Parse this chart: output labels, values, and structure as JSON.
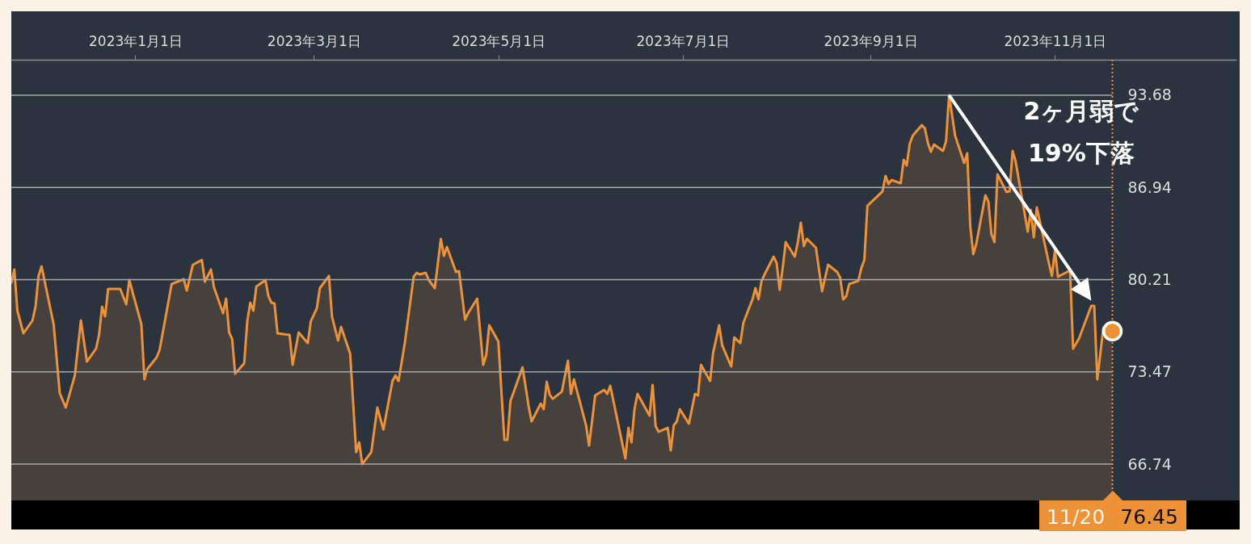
{
  "chart_data": {
    "type": "area",
    "x": [
      "2022-11-21",
      "2022-11-22",
      "2022-11-23",
      "2022-11-25",
      "2022-11-28",
      "2022-11-29",
      "2022-11-30",
      "2022-12-01",
      "2022-12-05",
      "2022-12-07",
      "2022-12-09",
      "2022-12-12",
      "2022-12-14",
      "2022-12-16",
      "2022-12-19",
      "2022-12-20",
      "2022-12-21",
      "2022-12-22",
      "2022-12-23",
      "2022-12-27",
      "2022-12-29",
      "2022-12-30",
      "2023-01-03",
      "2023-01-04",
      "2023-01-05",
      "2023-01-08",
      "2023-01-09",
      "2023-01-11",
      "2023-01-13",
      "2023-01-17",
      "2023-01-18",
      "2023-01-20",
      "2023-01-23",
      "2023-01-24",
      "2023-01-26",
      "2023-01-27",
      "2023-01-30",
      "2023-01-31",
      "2023-02-01",
      "2023-02-02",
      "2023-02-03",
      "2023-02-06",
      "2023-02-07",
      "2023-02-08",
      "2023-02-09",
      "2023-02-10",
      "2023-02-13",
      "2023-02-14",
      "2023-02-15",
      "2023-02-16",
      "2023-02-17",
      "2023-02-21",
      "2023-02-22",
      "2023-02-24",
      "2023-02-27",
      "2023-02-28",
      "2023-03-02",
      "2023-03-03",
      "2023-03-06",
      "2023-03-07",
      "2023-03-09",
      "2023-03-10",
      "2023-03-13",
      "2023-03-15",
      "2023-03-16",
      "2023-03-17",
      "2023-03-20",
      "2023-03-22",
      "2023-03-24",
      "2023-03-27",
      "2023-03-28",
      "2023-03-29",
      "2023-03-31",
      "2023-04-03",
      "2023-04-04",
      "2023-04-05",
      "2023-04-07",
      "2023-04-08",
      "2023-04-10",
      "2023-04-12",
      "2023-04-13",
      "2023-04-14",
      "2023-04-17",
      "2023-04-18",
      "2023-04-20",
      "2023-04-21",
      "2023-04-24",
      "2023-04-26",
      "2023-04-27",
      "2023-04-28",
      "2023-05-01",
      "2023-05-03",
      "2023-05-04",
      "2023-05-05",
      "2023-05-09",
      "2023-05-11",
      "2023-05-12",
      "2023-05-15",
      "2023-05-16",
      "2023-05-17",
      "2023-05-18",
      "2023-05-19",
      "2023-05-22",
      "2023-05-24",
      "2023-05-25",
      "2023-05-26",
      "2023-05-30",
      "2023-05-31",
      "2023-06-02",
      "2023-06-05",
      "2023-06-06",
      "2023-06-07",
      "2023-06-12",
      "2023-06-13",
      "2023-06-14",
      "2023-06-15",
      "2023-06-16",
      "2023-06-20",
      "2023-06-21",
      "2023-06-22",
      "2023-06-23",
      "2023-06-26",
      "2023-06-27",
      "2023-06-28",
      "2023-06-29",
      "2023-06-30",
      "2023-07-03",
      "2023-07-05",
      "2023-07-06",
      "2023-07-07",
      "2023-07-10",
      "2023-07-11",
      "2023-07-13",
      "2023-07-14",
      "2023-07-17",
      "2023-07-18",
      "2023-07-20",
      "2023-07-21",
      "2023-07-24",
      "2023-07-25",
      "2023-07-26",
      "2023-07-27",
      "2023-07-28",
      "2023-07-31",
      "2023-08-01",
      "2023-08-02",
      "2023-08-03",
      "2023-08-04",
      "2023-08-07",
      "2023-08-08",
      "2023-08-09",
      "2023-08-10",
      "2023-08-11",
      "2023-08-14",
      "2023-08-16",
      "2023-08-18",
      "2023-08-21",
      "2023-08-22",
      "2023-08-23",
      "2023-08-24",
      "2023-08-25",
      "2023-08-28",
      "2023-08-29",
      "2023-08-30",
      "2023-08-31",
      "2023-09-05",
      "2023-09-06",
      "2023-09-07",
      "2023-09-08",
      "2023-09-11",
      "2023-09-12",
      "2023-09-13",
      "2023-09-14",
      "2023-09-15",
      "2023-09-18",
      "2023-09-19",
      "2023-09-20",
      "2023-09-21",
      "2023-09-22",
      "2023-09-25",
      "2023-09-26",
      "2023-09-27",
      "2023-09-28",
      "2023-09-29",
      "2023-10-02",
      "2023-10-03",
      "2023-10-04",
      "2023-10-05",
      "2023-10-06",
      "2023-10-09",
      "2023-10-10",
      "2023-10-11",
      "2023-10-12",
      "2023-10-13",
      "2023-10-16",
      "2023-10-17",
      "2023-10-18",
      "2023-10-19",
      "2023-10-23",
      "2023-10-24",
      "2023-10-25",
      "2023-10-26",
      "2023-10-30",
      "2023-10-31",
      "2023-11-01",
      "2023-11-02",
      "2023-11-06",
      "2023-11-07",
      "2023-11-09",
      "2023-11-13",
      "2023-11-14",
      "2023-11-15",
      "2023-11-17",
      "2023-11-20"
    ],
    "series": [
      {
        "color": "#ee9238",
        "values": [
          80.0,
          80.95,
          77.94,
          76.29,
          77.23,
          78.24,
          80.48,
          81.18,
          76.94,
          71.93,
          70.87,
          73.22,
          77.23,
          74.23,
          75.17,
          76.17,
          78.24,
          77.53,
          79.53,
          79.53,
          78.41,
          80.18,
          76.94,
          72.93,
          73.7,
          74.52,
          75.05,
          77.47,
          79.89,
          80.24,
          79.41,
          81.3,
          81.65,
          80.06,
          80.95,
          79.65,
          77.76,
          78.82,
          76.35,
          75.88,
          73.34,
          74.11,
          77.17,
          78.53,
          77.94,
          79.71,
          80.18,
          79.0,
          78.53,
          78.47,
          76.29,
          76.17,
          73.99,
          76.35,
          75.58,
          77.17,
          78.12,
          79.59,
          80.48,
          77.53,
          75.76,
          76.76,
          74.82,
          67.62,
          68.33,
          66.74,
          67.62,
          70.87,
          69.27,
          72.81,
          73.22,
          72.81,
          75.46,
          80.42,
          80.71,
          80.59,
          80.71,
          80.18,
          79.59,
          83.19,
          81.95,
          82.6,
          80.77,
          80.83,
          77.29,
          77.76,
          78.82,
          73.99,
          74.7,
          76.88,
          75.7,
          68.51,
          68.51,
          71.34,
          73.81,
          70.98,
          69.86,
          71.16,
          70.75,
          72.75,
          71.81,
          71.51,
          72.04,
          74.29,
          71.87,
          72.93,
          69.57,
          68.1,
          71.75,
          72.16,
          71.87,
          72.46,
          67.15,
          69.39,
          68.33,
          70.75,
          71.87,
          70.28,
          72.52,
          69.51,
          69.1,
          69.39,
          67.74,
          69.57,
          69.86,
          70.75,
          69.69,
          71.87,
          71.75,
          73.99,
          72.81,
          74.87,
          76.88,
          75.41,
          73.87,
          75.99,
          75.58,
          77.06,
          78.77,
          79.59,
          78.77,
          80.12,
          80.59,
          81.89,
          81.42,
          79.47,
          81.06,
          82.95,
          81.89,
          82.95,
          84.37,
          82.66,
          83.19,
          82.54,
          79.36,
          81.3,
          80.77,
          80.36,
          78.77,
          79.0,
          79.89,
          80.12,
          81.06,
          81.65,
          85.6,
          86.66,
          87.78,
          87.2,
          87.49,
          87.25,
          88.96,
          88.55,
          90.14,
          90.73,
          91.5,
          91.26,
          90.2,
          89.55,
          90.08,
          89.61,
          90.32,
          93.68,
          92.21,
          90.73,
          88.73,
          89.44,
          84.13,
          82.07,
          82.83,
          86.37,
          85.9,
          83.54,
          82.95,
          87.9,
          86.61,
          86.66,
          89.61,
          88.85,
          83.72,
          85.31,
          83.3,
          85.49,
          81.42,
          80.48,
          82.36,
          80.42,
          80.89,
          75.17,
          75.94,
          78.29,
          78.29,
          72.93,
          76.7,
          76.45
        ]
      }
    ],
    "xlim": [
      "2022-11-21",
      "2023-12-31"
    ],
    "xticks": [
      {
        "value": "2023-01-01",
        "label": "2023年1月1日"
      },
      {
        "value": "2023-03-01",
        "label": "2023年3月1日"
      },
      {
        "value": "2023-05-01",
        "label": "2023年5月1日"
      },
      {
        "value": "2023-07-01",
        "label": "2023年7月1日"
      },
      {
        "value": "2023-09-01",
        "label": "2023年9月1日"
      },
      {
        "value": "2023-11-01",
        "label": "2023年11月1日"
      }
    ],
    "ylim": [
      64.09,
      96.27
    ],
    "yticks": [
      66.74,
      73.47,
      80.21,
      86.94,
      93.68
    ],
    "grid": "y",
    "ref_lines": [
      {
        "axis": "x",
        "value": "2023-11-20",
        "label": "11/20",
        "color": "#ee9238",
        "line_style": "dotted"
      }
    ],
    "annotations": [
      "2ヶ月弱で\n19%下落",
      "76.45"
    ]
  }
}
